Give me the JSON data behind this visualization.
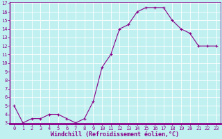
{
  "x": [
    0,
    1,
    2,
    3,
    4,
    5,
    6,
    7,
    8,
    9,
    10,
    11,
    12,
    13,
    14,
    15,
    16,
    17,
    18,
    19,
    20,
    21,
    22,
    23
  ],
  "y": [
    5,
    3,
    3.5,
    3.5,
    4,
    4,
    3.5,
    3,
    3.5,
    5.5,
    9.5,
    11,
    14,
    14.5,
    16,
    16.5,
    16.5,
    16.5,
    15,
    14,
    13.5,
    12,
    12,
    12
  ],
  "line_color": "#880088",
  "marker": "+",
  "background_color": "#C0F0F0",
  "grid_color": "#FFFFFF",
  "xlabel": "Windchill (Refroidissement éolien,°C)",
  "ylabel": "",
  "ylim": [
    3,
    17
  ],
  "xlim": [
    -0.5,
    23.5
  ],
  "yticks": [
    3,
    4,
    5,
    6,
    7,
    8,
    9,
    10,
    11,
    12,
    13,
    14,
    15,
    16,
    17
  ],
  "xticks": [
    0,
    1,
    2,
    3,
    4,
    5,
    6,
    7,
    8,
    9,
    10,
    11,
    12,
    13,
    14,
    15,
    16,
    17,
    18,
    19,
    20,
    21,
    22,
    23
  ],
  "tick_color": "#880088",
  "tick_fontsize": 5.0,
  "xlabel_fontsize": 6.0,
  "xlabel_color": "#880088",
  "spine_color": "#880088",
  "linewidth": 0.8,
  "markersize": 3,
  "spine_bottom_color": "#880088"
}
